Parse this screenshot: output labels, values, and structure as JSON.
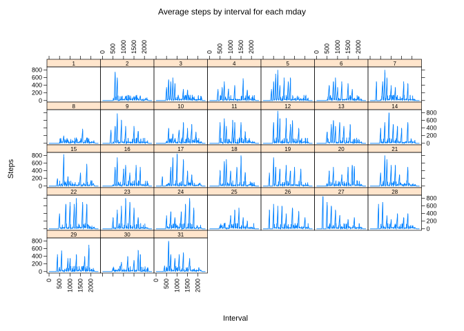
{
  "chart_data": {
    "type": "line",
    "title": "Average steps by interval for each mday",
    "xlabel": "Interval",
    "ylabel": "Steps",
    "xlim": [
      -100,
      2455
    ],
    "ylim": [
      -40,
      880
    ],
    "x_ticks": [
      0,
      500,
      1000,
      1500,
      2000
    ],
    "y_ticks": [
      0,
      200,
      400,
      600,
      800
    ],
    "layout": {
      "columns": 7,
      "rows": 5
    },
    "strip_fill": "#ffe5cc",
    "line_color": "#0080ff",
    "panels": [
      {
        "label": "1",
        "peaks": []
      },
      {
        "label": "2",
        "peaks": [
          [
            600,
            750
          ],
          [
            700,
            600
          ],
          [
            1100,
            120
          ],
          [
            1500,
            100
          ],
          [
            1800,
            120
          ]
        ]
      },
      {
        "label": "3",
        "peaks": [
          [
            500,
            350
          ],
          [
            600,
            550
          ],
          [
            700,
            500
          ],
          [
            800,
            600
          ],
          [
            900,
            450
          ],
          [
            1300,
            300
          ],
          [
            1500,
            280
          ]
        ]
      },
      {
        "label": "4",
        "peaks": [
          [
            400,
            300
          ],
          [
            600,
            350
          ],
          [
            700,
            500
          ],
          [
            900,
            300
          ],
          [
            1200,
            400
          ],
          [
            1600,
            580
          ],
          [
            1800,
            280
          ]
        ]
      },
      {
        "label": "5",
        "peaks": [
          [
            400,
            300
          ],
          [
            500,
            500
          ],
          [
            600,
            700
          ],
          [
            700,
            800
          ],
          [
            800,
            400
          ],
          [
            1000,
            600
          ],
          [
            1200,
            500
          ],
          [
            1300,
            600
          ]
        ]
      },
      {
        "label": "6",
        "peaks": [
          [
            600,
            400
          ],
          [
            800,
            500
          ],
          [
            900,
            600
          ],
          [
            1000,
            350
          ],
          [
            1200,
            500
          ],
          [
            1500,
            450
          ],
          [
            1700,
            300
          ]
        ]
      },
      {
        "label": "7",
        "peaks": [
          [
            300,
            500
          ],
          [
            600,
            500
          ],
          [
            700,
            800
          ],
          [
            800,
            600
          ],
          [
            1000,
            400
          ],
          [
            1200,
            350
          ],
          [
            1600,
            500
          ],
          [
            1800,
            450
          ]
        ]
      },
      {
        "label": "8",
        "peaks": [
          [
            700,
            200
          ],
          [
            1300,
            150
          ],
          [
            1600,
            380
          ],
          [
            1800,
            150
          ]
        ]
      },
      {
        "label": "9",
        "peaks": [
          [
            400,
            350
          ],
          [
            600,
            450
          ],
          [
            700,
            780
          ],
          [
            900,
            600
          ],
          [
            1100,
            450
          ],
          [
            1500,
            450
          ],
          [
            1700,
            320
          ]
        ]
      },
      {
        "label": "10",
        "peaks": [
          [
            600,
            400
          ],
          [
            800,
            250
          ],
          [
            1100,
            350
          ],
          [
            1300,
            550
          ],
          [
            1500,
            400
          ],
          [
            1700,
            500
          ],
          [
            1900,
            300
          ]
        ]
      },
      {
        "label": "11",
        "peaks": [
          [
            500,
            550
          ],
          [
            700,
            650
          ],
          [
            800,
            450
          ],
          [
            1100,
            600
          ],
          [
            1200,
            550
          ],
          [
            1500,
            550
          ],
          [
            1700,
            300
          ]
        ]
      },
      {
        "label": "12",
        "peaks": [
          [
            500,
            550
          ],
          [
            700,
            850
          ],
          [
            800,
            650
          ],
          [
            1100,
            650
          ],
          [
            1300,
            500
          ],
          [
            1400,
            600
          ],
          [
            1700,
            400
          ]
        ]
      },
      {
        "label": "13",
        "peaks": [
          [
            500,
            300
          ],
          [
            700,
            500
          ],
          [
            800,
            600
          ],
          [
            900,
            450
          ],
          [
            1100,
            550
          ],
          [
            1300,
            450
          ],
          [
            1600,
            500
          ]
        ]
      },
      {
        "label": "14",
        "peaks": [
          [
            500,
            400
          ],
          [
            700,
            550
          ],
          [
            900,
            800
          ],
          [
            1100,
            500
          ],
          [
            1300,
            450
          ],
          [
            1500,
            400
          ],
          [
            1800,
            550
          ]
        ]
      },
      {
        "label": "15",
        "peaks": [
          [
            400,
            200
          ],
          [
            700,
            830
          ],
          [
            900,
            250
          ],
          [
            1500,
            350
          ],
          [
            1800,
            580
          ],
          [
            2000,
            150
          ]
        ]
      },
      {
        "label": "16",
        "peaks": [
          [
            600,
            500
          ],
          [
            700,
            750
          ],
          [
            1000,
            450
          ],
          [
            1100,
            550
          ],
          [
            1300,
            350
          ],
          [
            1600,
            550
          ],
          [
            1800,
            500
          ]
        ]
      },
      {
        "label": "17",
        "peaks": [
          [
            300,
            250
          ],
          [
            700,
            500
          ],
          [
            800,
            750
          ],
          [
            1000,
            850
          ],
          [
            1300,
            700
          ],
          [
            1500,
            400
          ],
          [
            1700,
            300
          ]
        ]
      },
      {
        "label": "18",
        "peaks": [
          [
            500,
            400
          ],
          [
            700,
            650
          ],
          [
            800,
            700
          ],
          [
            1000,
            400
          ],
          [
            1300,
            500
          ],
          [
            1500,
            800
          ],
          [
            1700,
            350
          ]
        ]
      },
      {
        "label": "19",
        "peaks": [
          [
            300,
            350
          ],
          [
            500,
            750
          ],
          [
            600,
            500
          ],
          [
            800,
            450
          ],
          [
            1100,
            550
          ],
          [
            1300,
            400
          ],
          [
            1500,
            500
          ],
          [
            1800,
            450
          ]
        ]
      },
      {
        "label": "20",
        "peaks": [
          [
            600,
            400
          ],
          [
            800,
            500
          ],
          [
            1200,
            300
          ],
          [
            1500,
            500
          ],
          [
            1700,
            550
          ],
          [
            1800,
            520
          ]
        ]
      },
      {
        "label": "21",
        "peaks": [
          [
            500,
            350
          ],
          [
            700,
            800
          ],
          [
            800,
            700
          ],
          [
            1000,
            550
          ],
          [
            1200,
            550
          ],
          [
            1400,
            300
          ],
          [
            1800,
            500
          ]
        ]
      },
      {
        "label": "22",
        "peaks": [
          [
            500,
            400
          ],
          [
            800,
            650
          ],
          [
            1000,
            700
          ],
          [
            1200,
            650
          ],
          [
            1300,
            800
          ],
          [
            1600,
            700
          ],
          [
            1800,
            650
          ]
        ]
      },
      {
        "label": "23",
        "peaks": [
          [
            500,
            300
          ],
          [
            700,
            500
          ],
          [
            900,
            600
          ],
          [
            1100,
            800
          ],
          [
            1300,
            700
          ],
          [
            1500,
            550
          ],
          [
            1700,
            300
          ]
        ]
      },
      {
        "label": "24",
        "peaks": [
          [
            500,
            350
          ],
          [
            700,
            450
          ],
          [
            900,
            300
          ],
          [
            1200,
            450
          ],
          [
            1400,
            650
          ],
          [
            1600,
            800
          ],
          [
            1800,
            550
          ]
        ]
      },
      {
        "label": "25",
        "peaks": [
          [
            700,
            150
          ],
          [
            1000,
            350
          ],
          [
            1200,
            500
          ],
          [
            1400,
            550
          ],
          [
            1600,
            300
          ],
          [
            1800,
            200
          ]
        ]
      },
      {
        "label": "26",
        "peaks": [
          [
            300,
            500
          ],
          [
            500,
            650
          ],
          [
            700,
            600
          ],
          [
            900,
            600
          ],
          [
            1100,
            400
          ],
          [
            1400,
            550
          ],
          [
            1700,
            450
          ],
          [
            2000,
            300
          ]
        ]
      },
      {
        "label": "27",
        "peaks": [
          [
            300,
            850
          ],
          [
            500,
            700
          ],
          [
            700,
            600
          ],
          [
            900,
            500
          ],
          [
            1100,
            350
          ],
          [
            1500,
            250
          ],
          [
            1800,
            300
          ]
        ]
      },
      {
        "label": "28",
        "peaks": [
          [
            400,
            650
          ],
          [
            600,
            700
          ],
          [
            800,
            350
          ],
          [
            1000,
            250
          ],
          [
            1300,
            400
          ],
          [
            1600,
            300
          ],
          [
            1800,
            400
          ]
        ]
      },
      {
        "label": "29",
        "peaks": [
          [
            400,
            450
          ],
          [
            600,
            550
          ],
          [
            900,
            350
          ],
          [
            1000,
            350
          ],
          [
            1300,
            450
          ],
          [
            1700,
            400
          ],
          [
            1900,
            700
          ]
        ]
      },
      {
        "label": "30",
        "peaks": [
          [
            900,
            250
          ],
          [
            1200,
            400
          ],
          [
            1500,
            300
          ],
          [
            1700,
            550
          ],
          [
            1800,
            450
          ]
        ]
      },
      {
        "label": "31",
        "peaks": [
          [
            400,
            150
          ],
          [
            600,
            800
          ],
          [
            700,
            450
          ],
          [
            900,
            350
          ],
          [
            1100,
            450
          ],
          [
            1300,
            500
          ],
          [
            1600,
            350
          ]
        ]
      }
    ]
  }
}
